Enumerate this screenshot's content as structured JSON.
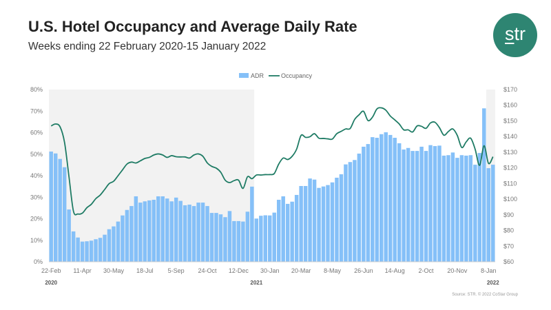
{
  "header": {
    "title": "U.S. Hotel Occupancy and Average Daily Rate",
    "subtitle": "Weeks ending 22 February 2020-15 January 2022",
    "logo_text": "str"
  },
  "source": "Source: STR. © 2022 CoStar Group",
  "colors": {
    "bar": "#85c0f8",
    "line": "#1e7b64",
    "shade": "#f2f2f2",
    "logo": "#2e8572"
  },
  "chart_data": {
    "type": "bar+line",
    "title": "U.S. Hotel Occupancy and Average Daily Rate",
    "legend": [
      "ADR",
      "Occupancy"
    ],
    "legend_position": "top-center",
    "y_left": {
      "label": "Occupancy",
      "ticks": [
        "0%",
        "10%",
        "20%",
        "30%",
        "40%",
        "50%",
        "60%",
        "70%",
        "80%"
      ],
      "range": [
        0,
        80
      ]
    },
    "y_right": {
      "label": "ADR",
      "ticks": [
        "$60",
        "$70",
        "$80",
        "$90",
        "$100",
        "$110",
        "$120",
        "$130",
        "$140",
        "$150",
        "$160",
        "$170"
      ],
      "range": [
        60,
        170
      ]
    },
    "x_ticks": [
      {
        "i": 0,
        "label": "22-Feb"
      },
      {
        "i": 7,
        "label": "11-Apr"
      },
      {
        "i": 14,
        "label": "30-May"
      },
      {
        "i": 21,
        "label": "18-Jul"
      },
      {
        "i": 28,
        "label": "5-Sep"
      },
      {
        "i": 35,
        "label": "24-Oct"
      },
      {
        "i": 42,
        "label": "12-Dec"
      },
      {
        "i": 49,
        "label": "30-Jan"
      },
      {
        "i": 56,
        "label": "20-Mar"
      },
      {
        "i": 63,
        "label": "8-May"
      },
      {
        "i": 70,
        "label": "26-Jun"
      },
      {
        "i": 77,
        "label": "14-Aug"
      },
      {
        "i": 84,
        "label": "2-Oct"
      },
      {
        "i": 91,
        "label": "20-Nov"
      },
      {
        "i": 98,
        "label": "8-Jan"
      }
    ],
    "years": [
      {
        "i": 0,
        "label": "2020"
      },
      {
        "i": 46,
        "label": "2021"
      },
      {
        "i": 99,
        "label": "2022"
      }
    ],
    "shaded_weeks": [
      [
        0,
        45
      ],
      [
        98,
        99
      ]
    ],
    "adr": [
      130.4,
      129.2,
      125.7,
      120.4,
      93.4,
      79.4,
      75.5,
      72.9,
      73.1,
      73.5,
      74.4,
      75.3,
      77.3,
      80.8,
      82.6,
      85.7,
      89.6,
      93.1,
      95.6,
      101.8,
      97.8,
      98.6,
      99.2,
      99.6,
      101.8,
      101.8,
      100.4,
      98.6,
      101,
      98.9,
      96.1,
      96.5,
      95.6,
      97.8,
      97.8,
      95.6,
      91.2,
      91.2,
      90.3,
      88.5,
      92.4,
      86,
      86,
      85.7,
      92,
      108,
      87.6,
      89.4,
      89.7,
      89.6,
      91.4,
      99.6,
      101.8,
      97,
      98.4,
      102.7,
      108.4,
      108.4,
      113.2,
      112.5,
      107.2,
      108.1,
      109,
      110.7,
      113.7,
      115.9,
      122.2,
      123.7,
      125,
      129.1,
      133.5,
      135.2,
      139.6,
      139.2,
      141.5,
      142.7,
      141,
      139.2,
      135.7,
      131.7,
      132.7,
      130.8,
      130.8,
      133.5,
      130.8,
      134.5,
      133.9,
      134.2,
      127.8,
      128.1,
      129.8,
      126.4,
      128.1,
      127.8,
      128.1,
      122,
      129.5,
      158,
      119.8,
      122
    ],
    "occupancy": [
      63.1,
      64.0,
      62.7,
      55.5,
      39.5,
      23.5,
      22.2,
      22.6,
      25.1,
      26.7,
      29.3,
      31,
      33.6,
      36.3,
      37.4,
      40,
      42.7,
      45.4,
      46.3,
      45.9,
      46.9,
      48,
      48.5,
      49.6,
      50.1,
      49.6,
      48.5,
      49.3,
      48.8,
      48.7,
      48.7,
      48.2,
      49.6,
      50.1,
      49,
      45.9,
      44.3,
      43.5,
      41.6,
      37.9,
      36.8,
      37.7,
      37.9,
      34.1,
      39.5,
      38.6,
      40.3,
      40.3,
      40.5,
      40.5,
      41,
      45.4,
      48.2,
      47.5,
      49,
      52.3,
      58.7,
      57.8,
      58.1,
      59.5,
      57.4,
      57.3,
      57.1,
      57,
      59.5,
      60.6,
      61.7,
      61.9,
      66.1,
      68.3,
      69.9,
      65.6,
      67.2,
      71,
      71.5,
      70.4,
      67.7,
      65.9,
      64,
      61.3,
      61.3,
      60.3,
      63.1,
      62.9,
      62,
      64.5,
      64.8,
      62.3,
      58.8,
      60.5,
      61.7,
      58.7,
      53.1,
      55.7,
      57.4,
      52.3,
      44.8,
      53.9,
      45.7,
      48.8
    ]
  }
}
